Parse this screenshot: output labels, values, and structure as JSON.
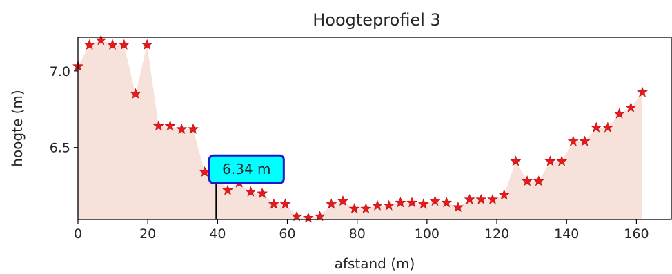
{
  "chart_data": {
    "type": "area",
    "title": "Hoogteprofiel 3",
    "xlabel": "afstand (m)",
    "ylabel": "hoogte (m)",
    "xlim": [
      0,
      170
    ],
    "ylim": [
      6.03,
      7.22
    ],
    "x_ticks": [
      0,
      20,
      40,
      60,
      80,
      100,
      120,
      140,
      160
    ],
    "y_ticks": [
      6.5,
      7.0
    ],
    "y_tick_labels": [
      "6.5",
      "7.0"
    ],
    "grid": false,
    "colors": {
      "fill": "#f6e1db",
      "marker": "#e8191c",
      "annotation_box": "#00ffff",
      "annotation_border": "#1a1acc",
      "annotation_line": "#000000"
    },
    "marker": "star",
    "points": [
      {
        "x": 0,
        "y": 7.03
      },
      {
        "x": 3.3,
        "y": 7.17
      },
      {
        "x": 6.6,
        "y": 7.2
      },
      {
        "x": 9.9,
        "y": 7.17
      },
      {
        "x": 13.2,
        "y": 7.17
      },
      {
        "x": 16.5,
        "y": 6.85
      },
      {
        "x": 19.8,
        "y": 7.17
      },
      {
        "x": 23.1,
        "y": 6.64
      },
      {
        "x": 26.4,
        "y": 6.64
      },
      {
        "x": 29.7,
        "y": 6.62
      },
      {
        "x": 33.0,
        "y": 6.62
      },
      {
        "x": 36.3,
        "y": 6.34
      },
      {
        "x": 39.6,
        "y": 6.34
      },
      {
        "x": 42.9,
        "y": 6.22
      },
      {
        "x": 46.2,
        "y": 6.27
      },
      {
        "x": 49.5,
        "y": 6.21
      },
      {
        "x": 52.8,
        "y": 6.2
      },
      {
        "x": 56.1,
        "y": 6.13
      },
      {
        "x": 59.4,
        "y": 6.13
      },
      {
        "x": 62.7,
        "y": 6.05
      },
      {
        "x": 66.0,
        "y": 6.04
      },
      {
        "x": 69.3,
        "y": 6.05
      },
      {
        "x": 72.6,
        "y": 6.13
      },
      {
        "x": 75.9,
        "y": 6.15
      },
      {
        "x": 79.2,
        "y": 6.1
      },
      {
        "x": 82.5,
        "y": 6.1
      },
      {
        "x": 85.8,
        "y": 6.12
      },
      {
        "x": 89.1,
        "y": 6.12
      },
      {
        "x": 92.4,
        "y": 6.14
      },
      {
        "x": 95.7,
        "y": 6.14
      },
      {
        "x": 99.0,
        "y": 6.13
      },
      {
        "x": 102.3,
        "y": 6.15
      },
      {
        "x": 105.6,
        "y": 6.14
      },
      {
        "x": 108.9,
        "y": 6.11
      },
      {
        "x": 112.2,
        "y": 6.16
      },
      {
        "x": 115.5,
        "y": 6.16
      },
      {
        "x": 118.8,
        "y": 6.16
      },
      {
        "x": 122.1,
        "y": 6.19
      },
      {
        "x": 125.4,
        "y": 6.41
      },
      {
        "x": 128.7,
        "y": 6.28
      },
      {
        "x": 132.0,
        "y": 6.28
      },
      {
        "x": 135.3,
        "y": 6.41
      },
      {
        "x": 138.6,
        "y": 6.41
      },
      {
        "x": 141.9,
        "y": 6.54
      },
      {
        "x": 145.2,
        "y": 6.54
      },
      {
        "x": 148.5,
        "y": 6.63
      },
      {
        "x": 151.8,
        "y": 6.63
      },
      {
        "x": 155.1,
        "y": 6.72
      },
      {
        "x": 158.4,
        "y": 6.76
      },
      {
        "x": 161.7,
        "y": 6.86
      }
    ],
    "annotation": {
      "label": "6.34 m",
      "x": 39.6,
      "y": 6.34
    }
  }
}
